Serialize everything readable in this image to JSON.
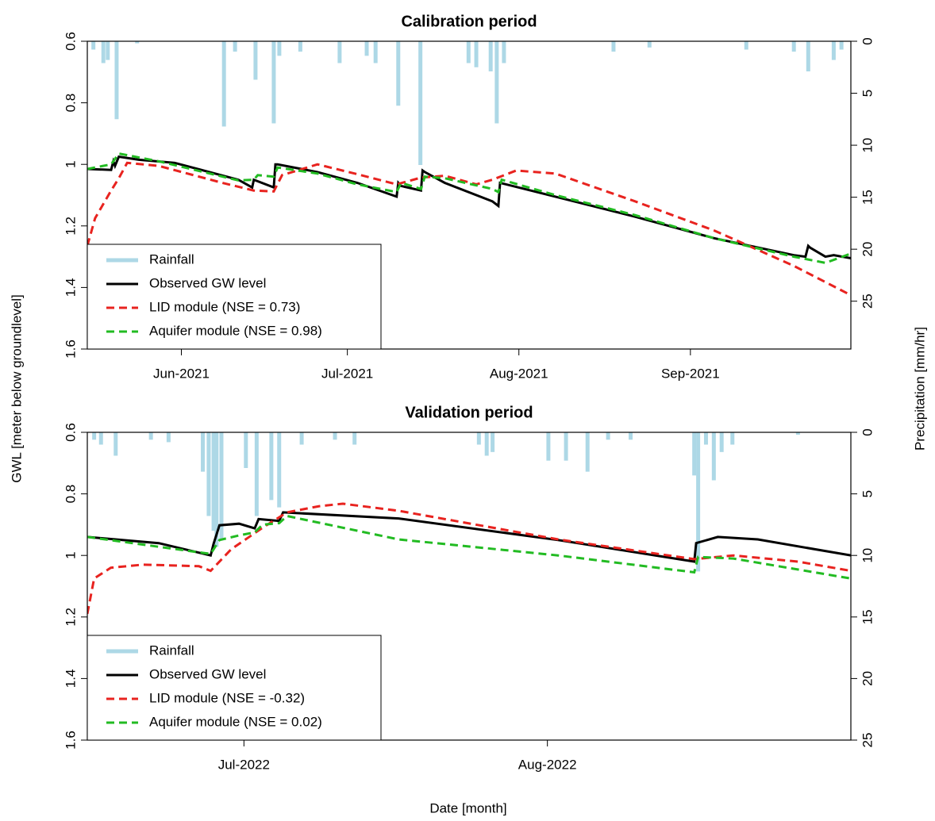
{
  "figure": {
    "ylabel": "GWL [meter below groundlevel]",
    "y2label": "Precipitation [mm/hr]",
    "xlabel": "Date [month]"
  },
  "chart_data": [
    {
      "type": "line",
      "title": "Calibration period",
      "xlim": [
        135,
        273
      ],
      "xticks": [
        {
          "value": 152,
          "label": "Jun-2021"
        },
        {
          "value": 182,
          "label": "Jul-2021"
        },
        {
          "value": 213,
          "label": "Aug-2021"
        },
        {
          "value": 244,
          "label": "Sep-2021"
        }
      ],
      "ylim": [
        1.6,
        0.6
      ],
      "yticks": [
        0.6,
        0.8,
        1,
        1.2,
        1.4,
        1.6
      ],
      "y2lim": [
        29.6,
        0
      ],
      "y2ticks": [
        0,
        5,
        10,
        15,
        20,
        25
      ],
      "legend": "bottom-left",
      "series": [
        {
          "name": "Rainfall",
          "color": "#add8e6",
          "type": "bar",
          "axis": "y2",
          "x": [
            136.1,
            137.9,
            138.7,
            140.3,
            144.0,
            159.7,
            161.7,
            165.4,
            168.7,
            169.7,
            173.5,
            180.6,
            185.5,
            187.1,
            191.2,
            195.2,
            203.9,
            205.3,
            207.9,
            209.0,
            210.3,
            230.1,
            236.6,
            254.1,
            262.7,
            265.3,
            269.9,
            271.3
          ],
          "values": [
            0.8,
            2.1,
            1.8,
            7.5,
            0.2,
            8.2,
            1.0,
            3.7,
            7.9,
            1.4,
            1.0,
            2.1,
            1.4,
            2.1,
            6.2,
            11.9,
            2.1,
            2.5,
            2.9,
            7.9,
            2.1,
            1.0,
            0.6,
            0.8,
            1.0,
            2.9,
            1.8,
            0.8
          ]
        },
        {
          "name": "Observed GW level",
          "color": "#000000",
          "linestyle": "solid",
          "x": [
            135,
            139.3,
            139.7,
            140.0,
            140.7,
            144.3,
            150.8,
            162.3,
            164.8,
            165.1,
            165.8,
            168.7,
            169.0,
            169.4,
            176.6,
            183.8,
            190.9,
            191.2,
            191.7,
            195.3,
            195.6,
            196.0,
            199.6,
            208.2,
            209.3,
            209.6,
            219.6,
            234.0,
            248.3,
            262.7,
            264.8,
            265.3,
            265.6,
            268.4,
            269.9,
            273
          ],
          "values": [
            1.015,
            1.018,
            0.99,
            1.005,
            0.975,
            0.985,
            0.995,
            1.05,
            1.075,
            1.05,
            1.055,
            1.075,
            1.0,
            1.0,
            1.025,
            1.06,
            1.105,
            1.06,
            1.07,
            1.085,
            1.02,
            1.025,
            1.06,
            1.12,
            1.135,
            1.06,
            1.105,
            1.17,
            1.24,
            1.295,
            1.3,
            1.265,
            1.27,
            1.3,
            1.295,
            1.305
          ]
        },
        {
          "name": "LID module (NSE = 0.73)",
          "color": "#e8231f",
          "linestyle": "dashed",
          "x": [
            135,
            136.4,
            139.3,
            140.7,
            142.2,
            147.9,
            159.4,
            165.1,
            168.7,
            170.2,
            176.6,
            183.8,
            190.9,
            195.3,
            199.6,
            205.3,
            208.2,
            212.5,
            219.6,
            234.0,
            248.3,
            262.7,
            273
          ],
          "values": [
            1.265,
            1.175,
            1.085,
            1.045,
            0.995,
            1.005,
            1.06,
            1.085,
            1.088,
            1.035,
            1.0,
            1.032,
            1.065,
            1.043,
            1.037,
            1.065,
            1.05,
            1.02,
            1.03,
            1.12,
            1.215,
            1.33,
            1.425
          ]
        },
        {
          "name": "Aquifer module (NSE = 0.98)",
          "color": "#22bb22",
          "linestyle": "dashed",
          "x": [
            135,
            139.3,
            140.7,
            147.9,
            162.3,
            165.1,
            165.8,
            168.7,
            169.4,
            176.6,
            183.8,
            190.9,
            191.7,
            195.3,
            196.0,
            199.6,
            208.2,
            209.3,
            209.9,
            219.6,
            234.0,
            248.3,
            262.7,
            268.4,
            273
          ],
          "values": [
            1.015,
            1.0,
            0.965,
            0.99,
            1.052,
            1.05,
            1.035,
            1.04,
            1.01,
            1.03,
            1.065,
            1.09,
            1.06,
            1.08,
            1.04,
            1.045,
            1.08,
            1.09,
            1.05,
            1.1,
            1.165,
            1.24,
            1.3,
            1.32,
            1.29
          ]
        }
      ]
    },
    {
      "type": "line",
      "title": "Validation period",
      "xlim": [
        166,
        244
      ],
      "xticks": [
        {
          "value": 182,
          "label": "Jul-2022"
        },
        {
          "value": 213,
          "label": "Aug-2022"
        }
      ],
      "ylim": [
        1.6,
        0.6
      ],
      "yticks": [
        0.6,
        0.8,
        1,
        1.2,
        1.4,
        1.6
      ],
      "y2lim": [
        25,
        0
      ],
      "y2ticks": [
        0,
        5,
        10,
        15,
        20,
        25
      ],
      "legend": "bottom-left",
      "series": [
        {
          "name": "Rainfall",
          "color": "#add8e6",
          "type": "bar",
          "axis": "y2",
          "x": [
            166.7,
            167.4,
            168.9,
            172.5,
            174.3,
            177.8,
            178.4,
            178.9,
            179.2,
            179.7,
            182.2,
            183.3,
            184.8,
            185.6,
            187.9,
            191.3,
            193.3,
            206.0,
            206.8,
            207.4,
            213.1,
            214.9,
            217.1,
            219.2,
            221.5,
            228.0,
            228.4,
            229.2,
            230.0,
            230.8,
            231.9,
            238.6
          ],
          "values": [
            0.6,
            1.0,
            1.9,
            0.6,
            0.8,
            3.2,
            6.8,
            8.0,
            9.3,
            8.7,
            2.9,
            6.8,
            5.5,
            6.1,
            1.0,
            0.6,
            1.0,
            1.0,
            1.9,
            1.6,
            2.3,
            2.3,
            3.2,
            0.6,
            0.6,
            3.5,
            11.3,
            1.0,
            3.9,
            1.6,
            1.0,
            0.2
          ]
        },
        {
          "name": "Observed GW level",
          "color": "#000000",
          "linestyle": "solid",
          "x": [
            166,
            173.3,
            178.6,
            178.9,
            179.5,
            181.5,
            183.1,
            183.5,
            185.6,
            186.0,
            197.8,
            214.1,
            228.0,
            228.2,
            230.4,
            234.5,
            244
          ],
          "values": [
            0.94,
            0.96,
            1.0,
            0.962,
            0.902,
            0.897,
            0.912,
            0.882,
            0.888,
            0.86,
            0.88,
            0.95,
            1.02,
            0.96,
            0.94,
            0.948,
            1.0
          ]
        },
        {
          "name": "LID module (NSE = -0.32)",
          "color": "#e8231f",
          "linestyle": "dashed",
          "x": [
            166,
            166.7,
            168.4,
            171.7,
            177.4,
            178.6,
            180.7,
            183.9,
            186.4,
            189.7,
            192.1,
            197.8,
            214.1,
            228.0,
            232.0,
            238.6,
            244
          ],
          "values": [
            1.19,
            1.075,
            1.04,
            1.03,
            1.035,
            1.05,
            0.98,
            0.91,
            0.86,
            0.84,
            0.832,
            0.855,
            0.948,
            1.012,
            1.0,
            1.02,
            1.05
          ]
        },
        {
          "name": "Aquifer module (NSE = 0.02)",
          "color": "#22bb22",
          "linestyle": "dashed",
          "x": [
            166,
            178.6,
            179.5,
            181.5,
            183.1,
            183.9,
            185.6,
            186.4,
            197.8,
            214.1,
            228.0,
            228.4,
            232.0,
            244
          ],
          "values": [
            0.94,
            0.995,
            0.95,
            0.935,
            0.925,
            0.9,
            0.895,
            0.872,
            0.948,
            1.0,
            1.055,
            1.005,
            1.01,
            1.075
          ]
        }
      ]
    }
  ]
}
